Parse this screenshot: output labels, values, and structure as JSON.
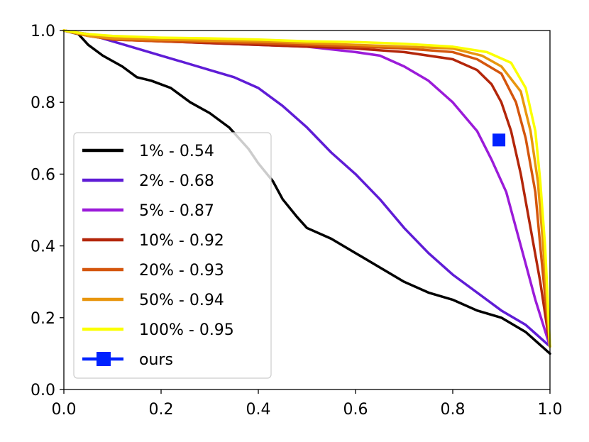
{
  "chart_data": {
    "type": "line",
    "title": "",
    "xlabel": "",
    "ylabel": "",
    "xlim": [
      0.0,
      1.0
    ],
    "ylim": [
      0.0,
      1.0
    ],
    "x_ticks": [
      "0.0",
      "0.2",
      "0.4",
      "0.6",
      "0.8",
      "1.0"
    ],
    "y_ticks": [
      "0.0",
      "0.2",
      "0.4",
      "0.6",
      "0.8",
      "1.0"
    ],
    "grid": false,
    "legend_position": "center-left",
    "series": [
      {
        "name": "1% - 0.54",
        "color": "#000000",
        "points": [
          [
            0.0,
            1.0
          ],
          [
            0.03,
            0.99
          ],
          [
            0.05,
            0.96
          ],
          [
            0.08,
            0.93
          ],
          [
            0.12,
            0.9
          ],
          [
            0.15,
            0.87
          ],
          [
            0.18,
            0.86
          ],
          [
            0.22,
            0.84
          ],
          [
            0.26,
            0.8
          ],
          [
            0.3,
            0.77
          ],
          [
            0.34,
            0.73
          ],
          [
            0.38,
            0.67
          ],
          [
            0.4,
            0.63
          ],
          [
            0.43,
            0.58
          ],
          [
            0.45,
            0.53
          ],
          [
            0.48,
            0.48
          ],
          [
            0.5,
            0.45
          ],
          [
            0.55,
            0.42
          ],
          [
            0.6,
            0.38
          ],
          [
            0.65,
            0.34
          ],
          [
            0.7,
            0.3
          ],
          [
            0.75,
            0.27
          ],
          [
            0.8,
            0.25
          ],
          [
            0.85,
            0.22
          ],
          [
            0.9,
            0.2
          ],
          [
            0.95,
            0.16
          ],
          [
            1.0,
            0.1
          ]
        ]
      },
      {
        "name": "2% - 0.68",
        "color": "#5f1cd6",
        "points": [
          [
            0.0,
            1.0
          ],
          [
            0.05,
            0.99
          ],
          [
            0.1,
            0.97
          ],
          [
            0.15,
            0.95
          ],
          [
            0.2,
            0.93
          ],
          [
            0.25,
            0.91
          ],
          [
            0.3,
            0.89
          ],
          [
            0.35,
            0.87
          ],
          [
            0.4,
            0.84
          ],
          [
            0.45,
            0.79
          ],
          [
            0.5,
            0.73
          ],
          [
            0.55,
            0.66
          ],
          [
            0.6,
            0.6
          ],
          [
            0.65,
            0.53
          ],
          [
            0.7,
            0.45
          ],
          [
            0.75,
            0.38
          ],
          [
            0.8,
            0.32
          ],
          [
            0.85,
            0.27
          ],
          [
            0.9,
            0.22
          ],
          [
            0.95,
            0.18
          ],
          [
            1.0,
            0.12
          ]
        ]
      },
      {
        "name": "5% - 0.87",
        "color": "#9b1bd9",
        "points": [
          [
            0.0,
            1.0
          ],
          [
            0.05,
            0.99
          ],
          [
            0.1,
            0.98
          ],
          [
            0.15,
            0.975
          ],
          [
            0.2,
            0.97
          ],
          [
            0.3,
            0.965
          ],
          [
            0.4,
            0.96
          ],
          [
            0.5,
            0.955
          ],
          [
            0.6,
            0.94
          ],
          [
            0.65,
            0.93
          ],
          [
            0.7,
            0.9
          ],
          [
            0.75,
            0.86
          ],
          [
            0.8,
            0.8
          ],
          [
            0.85,
            0.72
          ],
          [
            0.88,
            0.64
          ],
          [
            0.91,
            0.55
          ],
          [
            0.93,
            0.45
          ],
          [
            0.95,
            0.35
          ],
          [
            0.97,
            0.25
          ],
          [
            1.0,
            0.12
          ]
        ]
      },
      {
        "name": "10% - 0.92",
        "color": "#b3260a",
        "points": [
          [
            0.0,
            1.0
          ],
          [
            0.05,
            0.985
          ],
          [
            0.1,
            0.975
          ],
          [
            0.2,
            0.97
          ],
          [
            0.3,
            0.965
          ],
          [
            0.4,
            0.96
          ],
          [
            0.5,
            0.955
          ],
          [
            0.6,
            0.95
          ],
          [
            0.7,
            0.94
          ],
          [
            0.8,
            0.92
          ],
          [
            0.85,
            0.89
          ],
          [
            0.88,
            0.85
          ],
          [
            0.9,
            0.8
          ],
          [
            0.92,
            0.72
          ],
          [
            0.94,
            0.6
          ],
          [
            0.96,
            0.45
          ],
          [
            0.98,
            0.3
          ],
          [
            1.0,
            0.12
          ]
        ]
      },
      {
        "name": "20% - 0.93",
        "color": "#d4560d",
        "points": [
          [
            0.0,
            1.0
          ],
          [
            0.05,
            0.985
          ],
          [
            0.1,
            0.975
          ],
          [
            0.2,
            0.97
          ],
          [
            0.3,
            0.968
          ],
          [
            0.4,
            0.965
          ],
          [
            0.5,
            0.96
          ],
          [
            0.6,
            0.955
          ],
          [
            0.7,
            0.95
          ],
          [
            0.8,
            0.94
          ],
          [
            0.85,
            0.92
          ],
          [
            0.9,
            0.88
          ],
          [
            0.93,
            0.8
          ],
          [
            0.95,
            0.7
          ],
          [
            0.97,
            0.55
          ],
          [
            0.98,
            0.4
          ],
          [
            1.0,
            0.12
          ]
        ]
      },
      {
        "name": "50% - 0.94",
        "color": "#e8960e",
        "points": [
          [
            0.0,
            1.0
          ],
          [
            0.05,
            0.985
          ],
          [
            0.1,
            0.978
          ],
          [
            0.2,
            0.975
          ],
          [
            0.3,
            0.972
          ],
          [
            0.4,
            0.97
          ],
          [
            0.5,
            0.965
          ],
          [
            0.6,
            0.96
          ],
          [
            0.7,
            0.955
          ],
          [
            0.8,
            0.95
          ],
          [
            0.86,
            0.93
          ],
          [
            0.9,
            0.9
          ],
          [
            0.94,
            0.83
          ],
          [
            0.96,
            0.72
          ],
          [
            0.975,
            0.58
          ],
          [
            0.985,
            0.42
          ],
          [
            1.0,
            0.12
          ]
        ]
      },
      {
        "name": "100% - 0.95",
        "color": "#fbff00",
        "points": [
          [
            0.0,
            1.0
          ],
          [
            0.05,
            0.99
          ],
          [
            0.1,
            0.985
          ],
          [
            0.2,
            0.98
          ],
          [
            0.3,
            0.978
          ],
          [
            0.4,
            0.975
          ],
          [
            0.5,
            0.97
          ],
          [
            0.6,
            0.968
          ],
          [
            0.7,
            0.963
          ],
          [
            0.8,
            0.955
          ],
          [
            0.87,
            0.94
          ],
          [
            0.92,
            0.91
          ],
          [
            0.95,
            0.84
          ],
          [
            0.97,
            0.72
          ],
          [
            0.98,
            0.58
          ],
          [
            0.99,
            0.4
          ],
          [
            1.0,
            0.12
          ]
        ]
      },
      {
        "name": "ours",
        "color": "#0022ff",
        "marker": "square",
        "points": [
          [
            0.895,
            0.695
          ]
        ]
      }
    ]
  }
}
